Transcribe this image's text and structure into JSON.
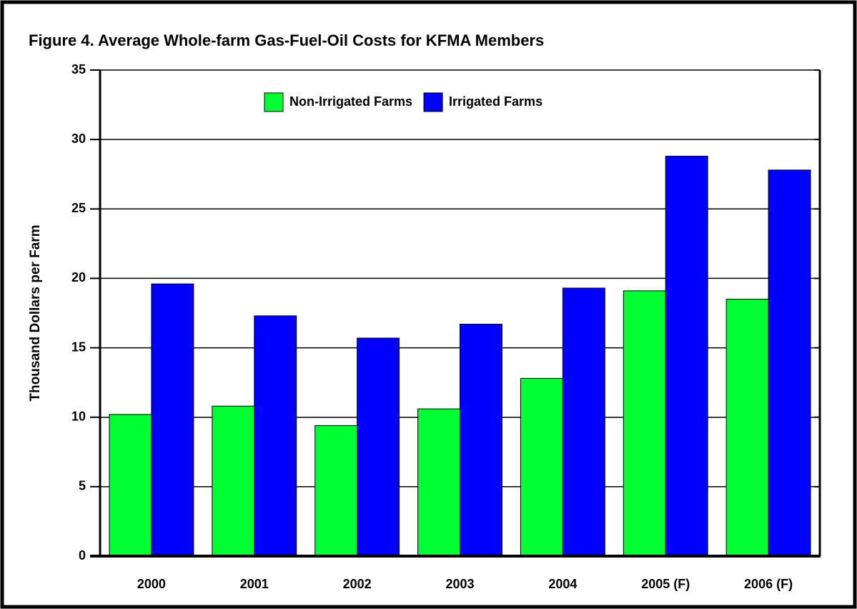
{
  "chart_data": {
    "type": "bar",
    "title": "Figure 4.  Average Whole-farm Gas-Fuel-Oil Costs for KFMA Members",
    "y_label": "Thousand Dollars per Farm",
    "categories": [
      "2000",
      "2001",
      "2002",
      "2003",
      "2004",
      "2005 (F)",
      "2006 (F)"
    ],
    "series": [
      {
        "name": "Non-Irrigated Farms",
        "color": "#00ff33",
        "values": [
          10.2,
          10.8,
          9.4,
          10.6,
          12.8,
          19.1,
          18.5
        ]
      },
      {
        "name": "Irrigated Farms",
        "color": "#0000ff",
        "values": [
          19.6,
          17.3,
          15.7,
          16.7,
          19.3,
          28.8,
          27.8
        ]
      }
    ],
    "ylim": [
      0,
      35
    ],
    "yticks": [
      0,
      5,
      10,
      15,
      20,
      25,
      30,
      35
    ],
    "grid": true,
    "legend": "top"
  }
}
